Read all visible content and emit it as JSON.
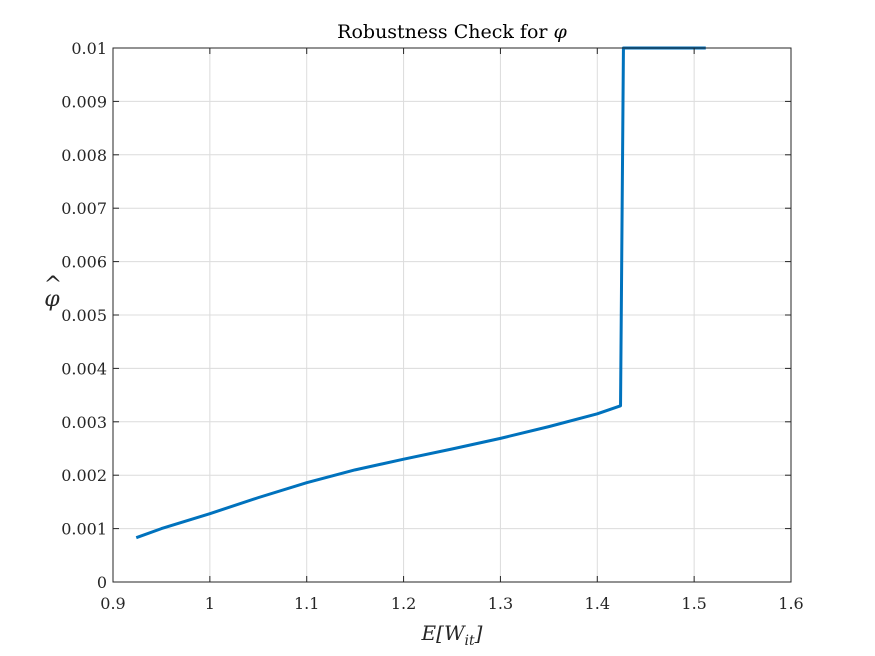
{
  "chart_data": {
    "type": "line",
    "title": "Robustness Check for φ",
    "xlabel": "E[W_it]",
    "ylabel": "φ̂",
    "xlim": [
      0.9,
      1.6
    ],
    "ylim": [
      0,
      0.01
    ],
    "xticks": [
      0.9,
      1.0,
      1.1,
      1.2,
      1.3,
      1.4,
      1.5,
      1.6
    ],
    "xtick_labels": [
      "0.9",
      "1",
      "1.1",
      "1.2",
      "1.3",
      "1.4",
      "1.5",
      "1.6"
    ],
    "yticks": [
      0,
      0.001,
      0.002,
      0.003,
      0.004,
      0.005,
      0.006,
      0.007,
      0.008,
      0.009,
      0.01
    ],
    "ytick_labels": [
      "0",
      "0.001",
      "0.002",
      "0.003",
      "0.004",
      "0.005",
      "0.006",
      "0.007",
      "0.008",
      "0.009",
      "0.01"
    ],
    "grid": true,
    "series": [
      {
        "color": "#0072BD",
        "x": [
          0.924,
          0.95,
          1.0,
          1.05,
          1.1,
          1.15,
          1.2,
          1.25,
          1.3,
          1.35,
          1.4,
          1.424,
          1.427,
          1.45,
          1.5,
          1.512
        ],
        "y": [
          0.00083,
          0.001,
          0.00128,
          0.00158,
          0.00186,
          0.0021,
          0.0023,
          0.00249,
          0.00269,
          0.00291,
          0.00315,
          0.0033,
          0.01,
          0.01,
          0.01,
          0.01
        ]
      }
    ]
  }
}
